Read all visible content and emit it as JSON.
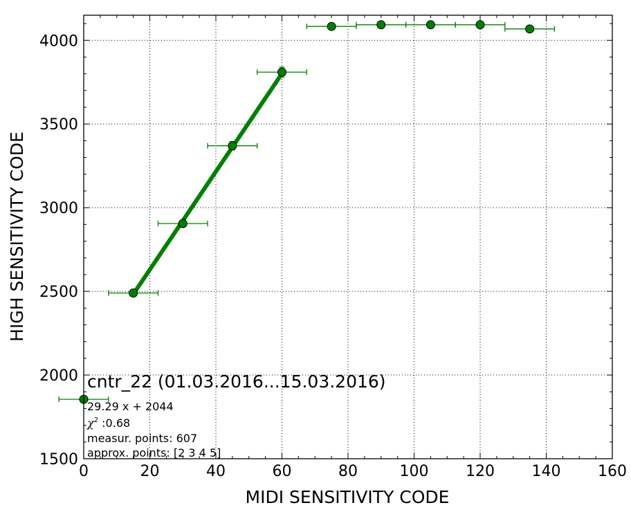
{
  "chart_data": {
    "type": "scatter",
    "xlabel": "MIDI SENSITIVITY CODE",
    "ylabel": "HIGH SENSITIVITY CODE",
    "xlim": [
      0,
      160
    ],
    "ylim": [
      1500,
      4150
    ],
    "x_ticks": [
      0,
      20,
      40,
      60,
      80,
      100,
      120,
      140,
      160
    ],
    "y_ticks": [
      1500,
      2000,
      2500,
      3000,
      3500,
      4000
    ],
    "grid": true,
    "series": [
      {
        "color": "#008000",
        "marker": "circle",
        "x": [
          0,
          15,
          30,
          45,
          60,
          75,
          90,
          105,
          120,
          135
        ],
        "y": [
          1855,
          2490,
          2905,
          3370,
          3810,
          4083,
          4093,
          4093,
          4093,
          4068
        ],
        "x_err": [
          7.5,
          7.5,
          7.5,
          7.5,
          7.5,
          7.5,
          7.5,
          7.5,
          7.5,
          7.5
        ],
        "y_err": [
          0,
          10,
          15,
          25,
          30,
          5,
          5,
          5,
          5,
          5
        ]
      }
    ],
    "fit_line": {
      "color": "#008000",
      "slope": 29.29,
      "intercept": 2044,
      "x_range": [
        15,
        60
      ]
    },
    "annotation": {
      "title": "cntr_22 (01.03.2016...15.03.2016)",
      "equation": "29.29 x + 2044",
      "chi_symbol": "χ",
      "chi_exp": "2",
      "chi_value": " :0.68",
      "measur_points": "measur. points: 607",
      "approx_points": "approx. points: [2 3 4 5]"
    }
  }
}
